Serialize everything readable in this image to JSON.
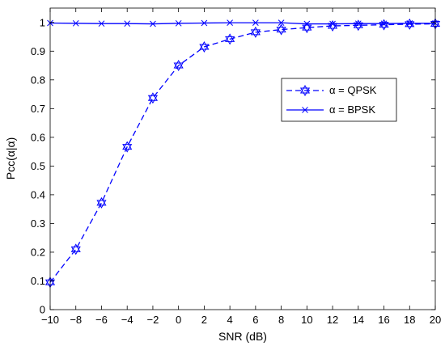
{
  "chart_data": {
    "type": "line",
    "xlabel": "SNR (dB)",
    "ylabel": "Pcc(α|α)",
    "xlim": [
      -10,
      20
    ],
    "ylim": [
      0,
      1.05
    ],
    "grid": false,
    "legend_position": "right",
    "x": [
      -10,
      -8,
      -6,
      -4,
      -2,
      0,
      2,
      4,
      6,
      8,
      10,
      12,
      14,
      16,
      18,
      20
    ],
    "xticks": [
      -10,
      -8,
      -6,
      -4,
      -2,
      0,
      2,
      4,
      6,
      8,
      10,
      12,
      14,
      16,
      18,
      20
    ],
    "yticks": [
      0,
      0.1,
      0.2,
      0.3,
      0.4,
      0.5,
      0.6,
      0.7,
      0.8,
      0.9,
      1
    ],
    "series": [
      {
        "name": "α = QPSK",
        "color": "#0000ff",
        "line_style": "dashed",
        "marker": "hexagram",
        "values": [
          0.095,
          0.21,
          0.372,
          0.567,
          0.737,
          0.85,
          0.915,
          0.942,
          0.966,
          0.975,
          0.982,
          0.988,
          0.99,
          0.992,
          0.994,
          0.995
        ]
      },
      {
        "name": "α = BPSK",
        "color": "#0000ff",
        "line_style": "solid",
        "marker": "x",
        "values": [
          0.998,
          0.997,
          0.996,
          0.996,
          0.995,
          0.997,
          0.998,
          0.999,
          0.999,
          0.999,
          0.995,
          0.995,
          0.996,
          0.996,
          0.997,
          0.997
        ]
      }
    ]
  }
}
